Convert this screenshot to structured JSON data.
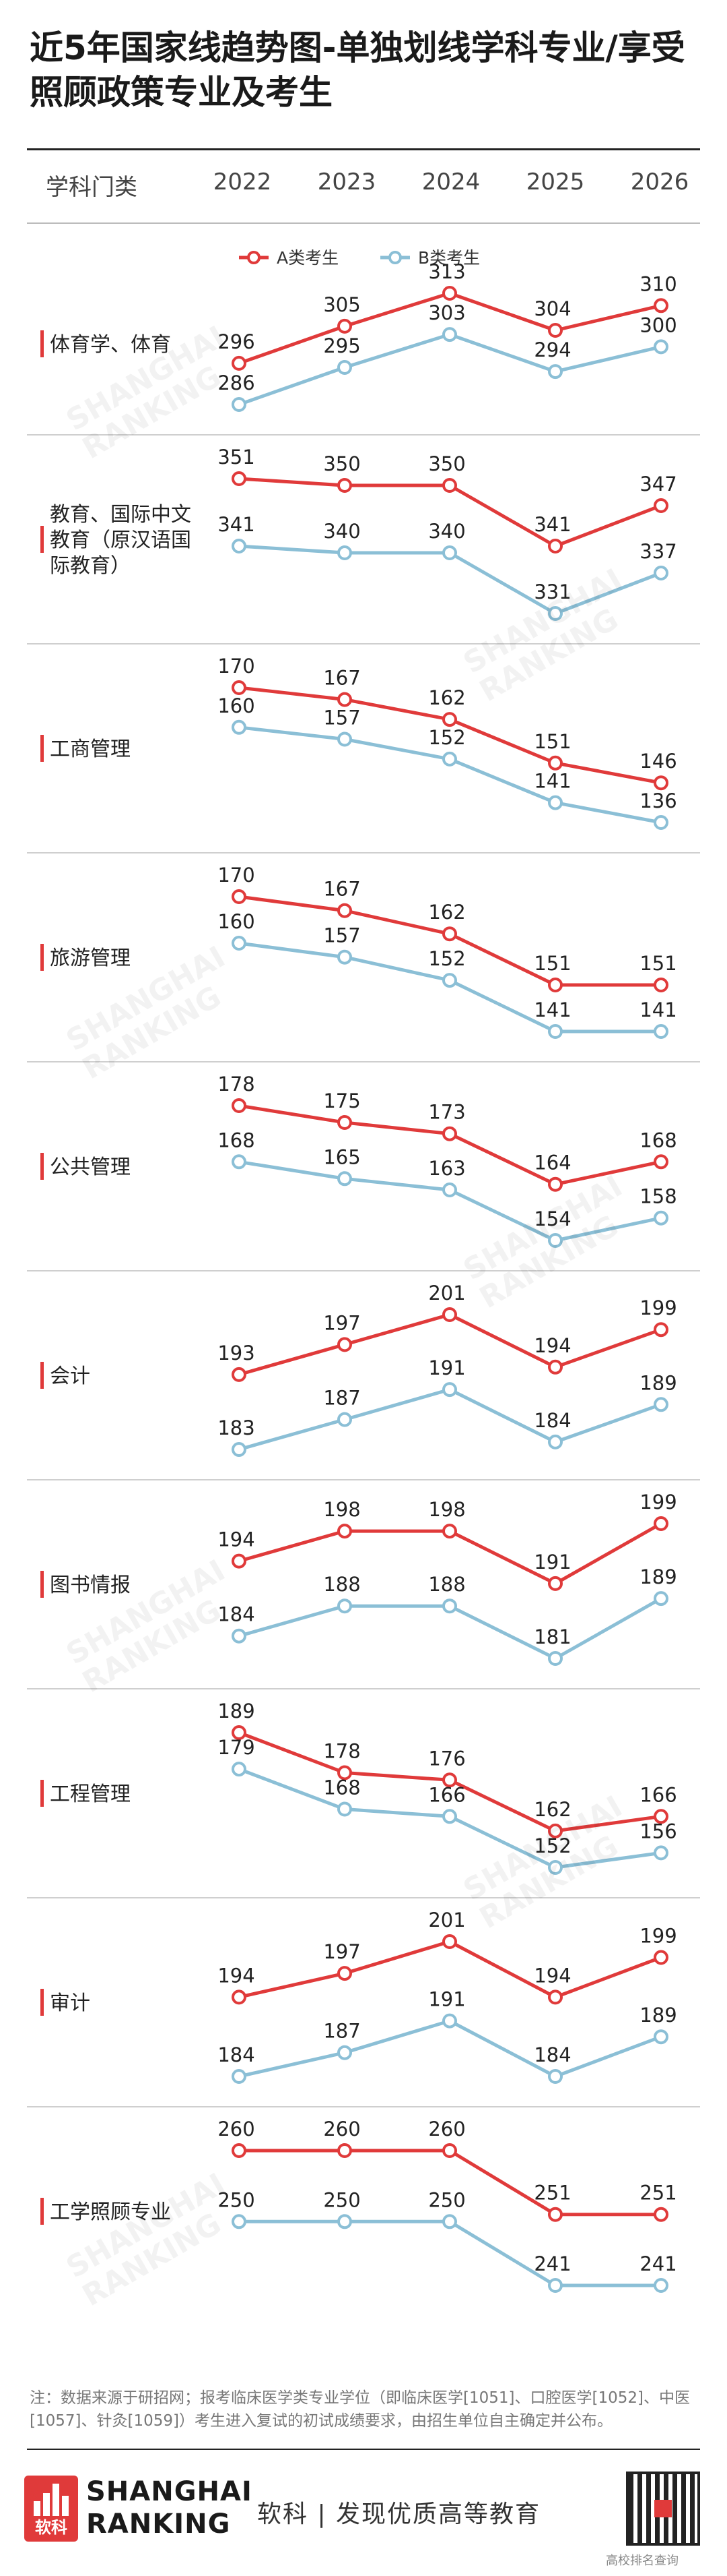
{
  "title": "近5年国家线趋势图-单独划线学科专业/享受照顾政策专业及考生",
  "header": {
    "category_label": "学科门类",
    "years": [
      "2022",
      "2023",
      "2024",
      "2025",
      "2026"
    ]
  },
  "legend": {
    "a": "A类考生",
    "b": "B类考生"
  },
  "colors": {
    "a": "#e03a3a",
    "b": "#8bbfd6",
    "accent": "#e03a3a"
  },
  "chart_data": [
    {
      "type": "line",
      "category": "体育学、体育",
      "x": [
        "2022",
        "2023",
        "2024",
        "2025",
        "2026"
      ],
      "series": [
        {
          "name": "A类考生",
          "values": [
            296,
            305,
            313,
            304,
            310
          ]
        },
        {
          "name": "B类考生",
          "values": [
            286,
            295,
            303,
            294,
            300
          ]
        }
      ]
    },
    {
      "type": "line",
      "category": "教育、国际中文教育（原汉语国际教育）",
      "x": [
        "2022",
        "2023",
        "2024",
        "2025",
        "2026"
      ],
      "series": [
        {
          "name": "A类考生",
          "values": [
            351,
            350,
            350,
            341,
            347
          ]
        },
        {
          "name": "B类考生",
          "values": [
            341,
            340,
            340,
            331,
            337
          ]
        }
      ]
    },
    {
      "type": "line",
      "category": "工商管理",
      "x": [
        "2022",
        "2023",
        "2024",
        "2025",
        "2026"
      ],
      "series": [
        {
          "name": "A类考生",
          "values": [
            170,
            167,
            162,
            151,
            146
          ]
        },
        {
          "name": "B类考生",
          "values": [
            160,
            157,
            152,
            141,
            136
          ]
        }
      ]
    },
    {
      "type": "line",
      "category": "旅游管理",
      "x": [
        "2022",
        "2023",
        "2024",
        "2025",
        "2026"
      ],
      "series": [
        {
          "name": "A类考生",
          "values": [
            170,
            167,
            162,
            151,
            151
          ]
        },
        {
          "name": "B类考生",
          "values": [
            160,
            157,
            152,
            141,
            141
          ]
        }
      ]
    },
    {
      "type": "line",
      "category": "公共管理",
      "x": [
        "2022",
        "2023",
        "2024",
        "2025",
        "2026"
      ],
      "series": [
        {
          "name": "A类考生",
          "values": [
            178,
            175,
            173,
            164,
            168
          ]
        },
        {
          "name": "B类考生",
          "values": [
            168,
            165,
            163,
            154,
            158
          ]
        }
      ]
    },
    {
      "type": "line",
      "category": "会计",
      "x": [
        "2022",
        "2023",
        "2024",
        "2025",
        "2026"
      ],
      "series": [
        {
          "name": "A类考生",
          "values": [
            193,
            197,
            201,
            194,
            199
          ]
        },
        {
          "name": "B类考生",
          "values": [
            183,
            187,
            191,
            184,
            189
          ]
        }
      ]
    },
    {
      "type": "line",
      "category": "图书情报",
      "x": [
        "2022",
        "2023",
        "2024",
        "2025",
        "2026"
      ],
      "series": [
        {
          "name": "A类考生",
          "values": [
            194,
            198,
            198,
            191,
            199
          ]
        },
        {
          "name": "B类考生",
          "values": [
            184,
            188,
            188,
            181,
            189
          ]
        }
      ]
    },
    {
      "type": "line",
      "category": "工程管理",
      "x": [
        "2022",
        "2023",
        "2024",
        "2025",
        "2026"
      ],
      "series": [
        {
          "name": "A类考生",
          "values": [
            189,
            178,
            176,
            162,
            166
          ]
        },
        {
          "name": "B类考生",
          "values": [
            179,
            168,
            166,
            152,
            156
          ]
        }
      ]
    },
    {
      "type": "line",
      "category": "审计",
      "x": [
        "2022",
        "2023",
        "2024",
        "2025",
        "2026"
      ],
      "series": [
        {
          "name": "A类考生",
          "values": [
            194,
            197,
            201,
            194,
            199
          ]
        },
        {
          "name": "B类考生",
          "values": [
            184,
            187,
            191,
            184,
            189
          ]
        }
      ]
    },
    {
      "type": "line",
      "category": "工学照顾专业",
      "x": [
        "2022",
        "2023",
        "2024",
        "2025",
        "2026"
      ],
      "series": [
        {
          "name": "A类考生",
          "values": [
            260,
            260,
            260,
            251,
            251
          ]
        },
        {
          "name": "B类考生",
          "values": [
            250,
            250,
            250,
            241,
            241
          ]
        }
      ]
    }
  ],
  "footnote": "注：数据来源于研招网；报考临床医学类专业学位（即临床医学[1051]、口腔医学[1052]、中医[1057]、针灸[1059]）考生进入复试的初试成绩要求，由招生单位自主确定并公布。",
  "footer": {
    "logo_glyph": "软科",
    "brand_line1": "SHANGHAI",
    "brand_line2": "RANKING",
    "slogan": "软科 | 发现优质高等教育",
    "qr_caption": "高校排名查询"
  },
  "watermark": {
    "line1": "SHANGHAI",
    "line2": "RANKING"
  }
}
